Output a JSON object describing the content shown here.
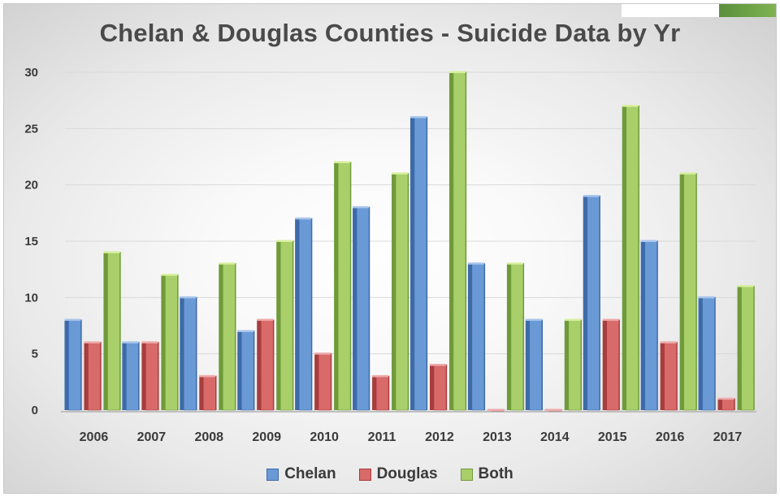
{
  "chart_data": {
    "type": "bar",
    "title": "Chelan & Douglas Counties - Suicide Data by Yr",
    "xlabel": "",
    "ylabel": "",
    "categories": [
      "2006",
      "2007",
      "2008",
      "2009",
      "2010",
      "2011",
      "2012",
      "2013",
      "2014",
      "2015",
      "2016",
      "2017"
    ],
    "series": [
      {
        "name": "Chelan",
        "values": [
          8,
          6,
          10,
          7,
          17,
          18,
          26,
          13,
          8,
          19,
          15,
          10
        ]
      },
      {
        "name": "Douglas",
        "values": [
          6,
          6,
          3,
          8,
          5,
          3,
          4,
          0,
          0,
          8,
          6,
          1
        ]
      },
      {
        "name": "Both",
        "values": [
          14,
          12,
          13,
          15,
          22,
          21,
          30,
          13,
          8,
          27,
          21,
          11
        ]
      }
    ],
    "ylim": [
      0,
      30
    ],
    "yticks": [
      0,
      5,
      10,
      15,
      20,
      25,
      30
    ],
    "grid": true,
    "legend_position": "bottom",
    "colors": {
      "Chelan": {
        "front": "#6a9ad6",
        "side": "#3d6aa8",
        "top": "#a9c6ec"
      },
      "Douglas": {
        "front": "#d86a6a",
        "side": "#a83d3d",
        "top": "#eeaaaa"
      },
      "Both": {
        "front": "#a9cf6a",
        "side": "#6f9a3a",
        "top": "#d8ef9f"
      }
    }
  }
}
